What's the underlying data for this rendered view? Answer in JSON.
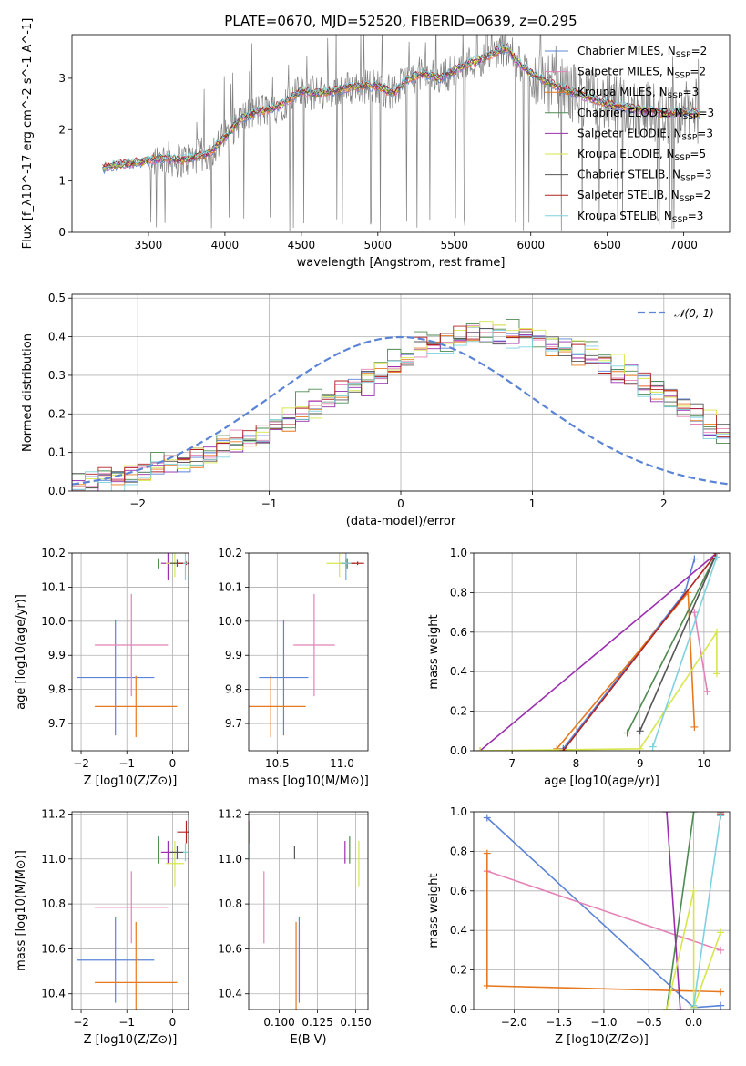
{
  "title": "PLATE=0670, MJD=52520, FIBERID=0639, z=0.295",
  "colors": {
    "chabrier_miles": "#5b84d6",
    "salpeter_miles": "#e582b8",
    "kroupa_miles": "#e6781e",
    "chabrier_elodie": "#4e8a50",
    "salpeter_elodie": "#9b2fae",
    "kroupa_elodie": "#d7e64c",
    "chabrier_stelib": "#555555",
    "salpeter_stelib": "#b22222",
    "kroupa_stelib": "#7ed2df",
    "observed": "#808080",
    "gaussian": "#5b84d6",
    "grid": "#b0b0b0"
  },
  "chart_data": [
    {
      "id": "spectrum",
      "type": "line",
      "xlabel": "wavelength [Angstrom, rest frame]",
      "ylabel": "Flux [f_λ10^-17 erg cm^-2 s^-1 A^-1]",
      "xlim": [
        3000,
        7300
      ],
      "ylim": [
        0,
        3.85
      ],
      "xticks": [
        3500,
        4000,
        4500,
        5000,
        5500,
        6000,
        6500,
        7000
      ],
      "yticks": [
        0,
        1,
        2,
        3
      ],
      "grid": false,
      "legend_position": "top-right",
      "legend": [
        {
          "key": "chabrier_miles",
          "label": "Chabrier MILES, N",
          "sub": "SSP",
          "tail": "=2"
        },
        {
          "key": "salpeter_miles",
          "label": "Salpeter MILES, N",
          "sub": "SSP",
          "tail": "=2"
        },
        {
          "key": "kroupa_miles",
          "label": "Kroupa MILES, N",
          "sub": "SSP",
          "tail": "=3"
        },
        {
          "key": "chabrier_elodie",
          "label": "Chabrier ELODIE, N",
          "sub": "SSP",
          "tail": "=3"
        },
        {
          "key": "salpeter_elodie",
          "label": "Salpeter ELODIE, N",
          "sub": "SSP",
          "tail": "=3"
        },
        {
          "key": "kroupa_elodie",
          "label": "Kroupa ELODIE, N",
          "sub": "SSP",
          "tail": "=5"
        },
        {
          "key": "chabrier_stelib",
          "label": "Chabrier STELIB, N",
          "sub": "SSP",
          "tail": "=3"
        },
        {
          "key": "salpeter_stelib",
          "label": "Salpeter STELIB, N",
          "sub": "SSP",
          "tail": "=2"
        },
        {
          "key": "kroupa_stelib",
          "label": "Kroupa STELIB, N",
          "sub": "SSP",
          "tail": "=3"
        }
      ],
      "continuum": {
        "x": [
          3200,
          3300,
          3400,
          3500,
          3600,
          3700,
          3800,
          3900,
          4000,
          4100,
          4200,
          4300,
          4400,
          4500,
          4600,
          4700,
          4800,
          4900,
          5000,
          5100,
          5200,
          5300,
          5400,
          5500,
          5600,
          5700,
          5800,
          5850,
          5900,
          6000,
          6100,
          6200,
          6300,
          6400,
          6500,
          6600,
          6700,
          6800,
          6900,
          7000,
          7100
        ],
        "y": [
          1.25,
          1.32,
          1.35,
          1.4,
          1.45,
          1.4,
          1.45,
          1.55,
          1.85,
          2.2,
          2.35,
          2.4,
          2.55,
          2.75,
          2.7,
          2.75,
          2.8,
          2.85,
          2.85,
          2.7,
          3.0,
          3.1,
          3.0,
          3.15,
          3.3,
          3.4,
          3.55,
          3.6,
          3.35,
          3.1,
          2.95,
          2.8,
          2.7,
          2.6,
          2.5,
          2.45,
          2.4,
          2.35,
          2.3,
          2.35,
          2.3
        ]
      }
    },
    {
      "id": "residuals",
      "type": "line",
      "xlabel": "(data-model)/error",
      "ylabel": "Normed distribution",
      "xlim": [
        -2.5,
        2.5
      ],
      "ylim": [
        0,
        0.51
      ],
      "xticks": [
        -2,
        -1,
        0,
        1,
        2
      ],
      "yticks": [
        0.0,
        0.1,
        0.2,
        0.3,
        0.4,
        0.5
      ],
      "grid": true,
      "legend_position": "top-right",
      "legend_label": "𝒩(0, 1)",
      "bin_edges_start": -2.5,
      "bin_width": 0.1,
      "histogram_envelope": [
        0.02,
        0.03,
        0.04,
        0.03,
        0.04,
        0.05,
        0.06,
        0.07,
        0.07,
        0.08,
        0.09,
        0.11,
        0.12,
        0.14,
        0.15,
        0.17,
        0.19,
        0.21,
        0.22,
        0.24,
        0.26,
        0.27,
        0.29,
        0.31,
        0.33,
        0.35,
        0.37,
        0.38,
        0.39,
        0.4,
        0.41,
        0.41,
        0.41,
        0.4,
        0.4,
        0.39,
        0.38,
        0.37,
        0.36,
        0.35,
        0.33,
        0.31,
        0.3,
        0.28,
        0.26,
        0.24,
        0.22,
        0.2,
        0.17,
        0.15
      ],
      "series_offsets": [
        0.0,
        0.02,
        -0.02,
        0.04,
        -0.03,
        0.03,
        -0.01,
        0.01,
        -0.04
      ]
    },
    {
      "id": "age_vs_Z",
      "type": "scatter",
      "xlabel": "Z [log10(Z/Z⊙)]",
      "ylabel": "age [log10(age/yr)]",
      "xlim": [
        -2.2,
        0.35
      ],
      "ylim": [
        9.62,
        10.2
      ],
      "xticks": [
        -2,
        -1,
        0
      ],
      "yticks": [
        9.7,
        9.8,
        9.9,
        10.0,
        10.1,
        10.2
      ]
    },
    {
      "id": "age_vs_mass",
      "type": "scatter",
      "xlabel": "mass [log10(M/M⊙)]",
      "ylabel": "",
      "xlim": [
        10.28,
        11.2
      ],
      "ylim": [
        9.62,
        10.2
      ],
      "xticks": [
        10.5,
        11.0
      ],
      "yticks": [
        9.7,
        9.8,
        9.9,
        10.0,
        10.1,
        10.2
      ]
    },
    {
      "id": "weight_vs_age",
      "type": "line",
      "xlabel": "age [log10(age/yr)]",
      "ylabel": "mass weight",
      "xlim": [
        6.4,
        10.4
      ],
      "ylim": [
        0,
        1.0
      ],
      "xticks": [
        7,
        8,
        9,
        10
      ],
      "yticks": [
        0.0,
        0.2,
        0.4,
        0.6,
        0.8,
        1.0
      ]
    },
    {
      "id": "mass_vs_Z",
      "type": "scatter",
      "xlabel": "Z [log10(Z/Z⊙)]",
      "ylabel": "mass [log10(M/M⊙)]",
      "xlim": [
        -2.2,
        0.35
      ],
      "ylim": [
        10.33,
        11.21
      ],
      "xticks": [
        -2,
        -1,
        0
      ],
      "yticks": [
        10.4,
        10.6,
        10.8,
        11.0,
        11.2
      ]
    },
    {
      "id": "mass_vs_ebv",
      "type": "scatter",
      "xlabel": "E(B-V)",
      "ylabel": "",
      "xlim": [
        0.08,
        0.158
      ],
      "ylim": [
        10.33,
        11.21
      ],
      "xticks": [
        0.1,
        0.125,
        0.15
      ],
      "xticklabels": [
        "0.100",
        "0.125",
        "0.150"
      ],
      "yticks": [
        10.4,
        10.6,
        10.8,
        11.0,
        11.2
      ]
    },
    {
      "id": "weight_vs_Z",
      "type": "line",
      "xlabel": "Z [log10(Z/Z⊙)]",
      "ylabel": "mass weight",
      "xlim": [
        -2.45,
        0.4
      ],
      "ylim": [
        0,
        1.0
      ],
      "xticks": [
        -2.0,
        -1.5,
        -1.0,
        -0.5,
        0.0
      ],
      "yticks": [
        0.0,
        0.2,
        0.4,
        0.6,
        0.8,
        1.0
      ]
    }
  ],
  "points": {
    "age_mass_Z": [
      {
        "key": "chabrier_miles",
        "Z": -1.25,
        "Zerr": 0.85,
        "age": 9.835,
        "ageerr": 0.17,
        "mass": 10.55,
        "masserr": 0.19,
        "ebv": 0.113
      },
      {
        "key": "salpeter_miles",
        "Z": -0.9,
        "Zerr": 0.8,
        "age": 9.93,
        "ageerr": 0.15,
        "mass": 10.785,
        "masserr": 0.16,
        "ebv": 0.09
      },
      {
        "key": "kroupa_miles",
        "Z": -0.8,
        "Zerr": 0.9,
        "age": 9.75,
        "ageerr": 0.09,
        "mass": 10.45,
        "masserr": 0.27,
        "ebv": 0.111
      },
      {
        "key": "chabrier_elodie",
        "Z": -0.3,
        "Zerr": 0.0,
        "age": 10.17,
        "ageerr": 0.015,
        "mass": 11.04,
        "masserr": 0.06,
        "ebv": 0.146
      },
      {
        "key": "salpeter_elodie",
        "Z": -0.1,
        "Zerr": 0.15,
        "age": 10.17,
        "ageerr": 0.05,
        "mass": 11.03,
        "masserr": 0.05,
        "ebv": 0.143
      },
      {
        "key": "kroupa_elodie",
        "Z": 0.05,
        "Zerr": 0.2,
        "age": 10.17,
        "ageerr": 0.04,
        "mass": 10.98,
        "masserr": 0.1,
        "ebv": 0.152
      },
      {
        "key": "chabrier_stelib",
        "Z": 0.1,
        "Zerr": 0.15,
        "age": 10.17,
        "ageerr": 0.01,
        "mass": 11.03,
        "masserr": 0.03,
        "ebv": 0.11
      },
      {
        "key": "salpeter_stelib",
        "Z": 0.3,
        "Zerr": 0.2,
        "age": 10.17,
        "ageerr": 0.005,
        "mass": 11.12,
        "masserr": 0.05,
        "ebv": 0.08
      },
      {
        "key": "kroupa_stelib",
        "Z": 0.28,
        "Zerr": 0.05,
        "age": 10.17,
        "ageerr": 0.05,
        "mass": 11.03,
        "masserr": 0.04,
        "ebv": 0.08
      }
    ],
    "weight_age": [
      {
        "key": "chabrier_miles",
        "x": [
          7.8,
          9.7,
          9.85
        ],
        "y": [
          0.01,
          0.8,
          0.97
        ]
      },
      {
        "key": "salpeter_miles",
        "x": [
          9.85,
          10.05
        ],
        "y": [
          0.7,
          0.3
        ]
      },
      {
        "key": "kroupa_miles",
        "x": [
          7.7,
          9.75,
          9.85
        ],
        "y": [
          0.01,
          0.8,
          0.12
        ]
      },
      {
        "key": "chabrier_elodie",
        "x": [
          8.8,
          10.2
        ],
        "y": [
          0.09,
          1.0
        ]
      },
      {
        "key": "salpeter_elodie",
        "x": [
          6.5,
          10.2
        ],
        "y": [
          0.0,
          1.0
        ]
      },
      {
        "key": "kroupa_elodie",
        "x": [
          6.5,
          9.0,
          10.2,
          10.2
        ],
        "y": [
          0.0,
          0.01,
          0.6,
          0.39
        ]
      },
      {
        "key": "chabrier_stelib",
        "x": [
          9.0,
          10.2
        ],
        "y": [
          0.1,
          1.0
        ]
      },
      {
        "key": "salpeter_stelib",
        "x": [
          7.8,
          10.2
        ],
        "y": [
          0.0,
          1.0
        ]
      },
      {
        "key": "kroupa_stelib",
        "x": [
          9.2,
          10.2
        ],
        "y": [
          0.02,
          0.98
        ]
      }
    ],
    "weight_Z": [
      {
        "key": "chabrier_miles",
        "x": [
          -2.3,
          0.0,
          0.3
        ],
        "y": [
          0.97,
          0.01,
          0.02
        ]
      },
      {
        "key": "salpeter_miles",
        "x": [
          -2.3,
          0.3
        ],
        "y": [
          0.7,
          0.3
        ]
      },
      {
        "key": "kroupa_miles",
        "x": [
          -2.3,
          -2.3,
          0.3
        ],
        "y": [
          0.79,
          0.12,
          0.09
        ]
      },
      {
        "key": "chabrier_elodie",
        "x": [
          -0.3,
          0.0
        ],
        "y": [
          0.0,
          1.0
        ]
      },
      {
        "key": "salpeter_elodie",
        "x": [
          -0.15,
          -0.3
        ],
        "y": [
          0.0,
          1.0
        ]
      },
      {
        "key": "kroupa_elodie",
        "x": [
          -0.3,
          0.0,
          0.0,
          0.3
        ],
        "y": [
          0.0,
          0.6,
          0.01,
          0.39
        ]
      },
      {
        "key": "chabrier_stelib",
        "x": [
          0.3,
          0.3
        ],
        "y": [
          0.98,
          1.0
        ]
      },
      {
        "key": "salpeter_stelib",
        "x": [
          0.3,
          0.3
        ],
        "y": [
          0.99,
          1.0
        ]
      },
      {
        "key": "kroupa_stelib",
        "x": [
          0.0,
          0.3
        ],
        "y": [
          0.02,
          0.98
        ]
      }
    ]
  }
}
